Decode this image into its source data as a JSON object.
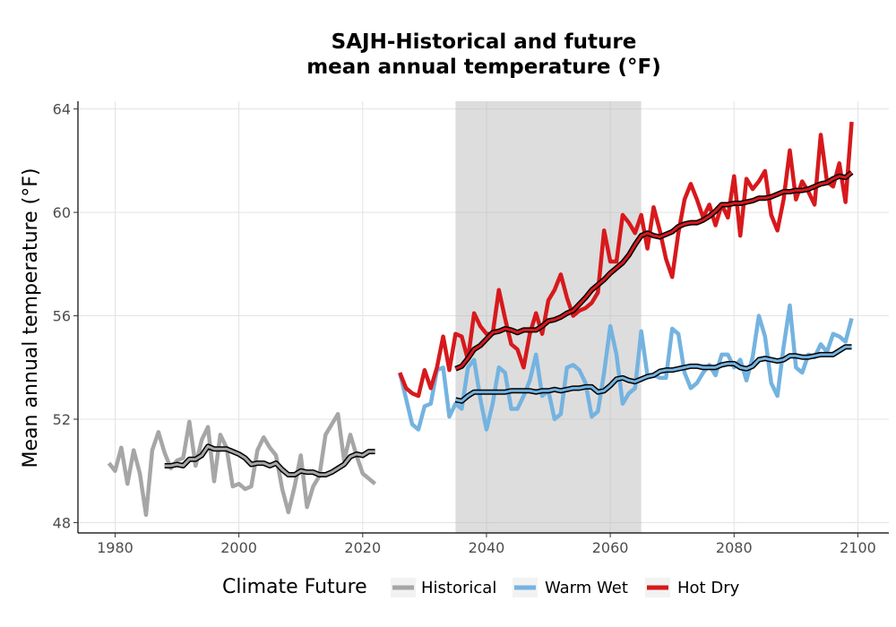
{
  "chart_data": {
    "type": "line",
    "title_line1": "SAJH-Historical and future",
    "title_line2": "mean annual temperature (°F)",
    "xlabel": "",
    "ylabel": "Mean annual temperature (°F)",
    "xlim": [
      1974,
      2105
    ],
    "ylim": [
      47.6,
      64.3
    ],
    "xticks": [
      1980,
      2000,
      2020,
      2040,
      2060,
      2080,
      2100
    ],
    "yticks": [
      48,
      52,
      56,
      60,
      64
    ],
    "grid": true,
    "shaded_period": [
      2035,
      2065
    ],
    "legend": {
      "title": "Climate Future",
      "position": "bottom",
      "entries": [
        "Historical",
        "Warm Wet",
        "Hot Dry"
      ]
    },
    "series": [
      {
        "name": "Historical",
        "color": "#a6a6a6",
        "x": [
          1979,
          1980,
          1981,
          1982,
          1983,
          1984,
          1985,
          1986,
          1987,
          1988,
          1989,
          1990,
          1991,
          1992,
          1993,
          1994,
          1995,
          1996,
          1997,
          1998,
          1999,
          2000,
          2001,
          2002,
          2003,
          2004,
          2005,
          2006,
          2007,
          2008,
          2009,
          2010,
          2011,
          2012,
          2013,
          2014,
          2015,
          2016,
          2017,
          2018,
          2019,
          2020,
          2021,
          2022
        ],
        "values": [
          50.3,
          50.0,
          50.9,
          49.5,
          50.8,
          49.9,
          48.3,
          50.8,
          51.5,
          50.7,
          50.1,
          50.4,
          50.5,
          51.9,
          50.2,
          51.2,
          51.7,
          49.6,
          51.4,
          50.9,
          49.4,
          49.5,
          49.3,
          49.4,
          50.8,
          51.3,
          50.9,
          50.6,
          49.3,
          48.4,
          49.4,
          50.6,
          48.6,
          49.4,
          49.8,
          51.4,
          51.8,
          52.2,
          50.4,
          51.4,
          50.6,
          49.9,
          49.7,
          49.5
        ],
        "smoothed_x": [
          1988,
          1989,
          1990,
          1991,
          1992,
          1993,
          1994,
          1995,
          1996,
          1997,
          1998,
          1999,
          2000,
          2001,
          2002,
          2003,
          2004,
          2005,
          2006,
          2007,
          2008,
          2009,
          2010,
          2011,
          2012,
          2013,
          2014,
          2015,
          2016,
          2017,
          2018,
          2019,
          2020,
          2021,
          2022
        ],
        "smoothed_values": [
          50.2,
          50.2,
          50.25,
          50.2,
          50.45,
          50.45,
          50.6,
          50.95,
          50.85,
          50.85,
          50.85,
          50.75,
          50.65,
          50.5,
          50.25,
          50.3,
          50.3,
          50.2,
          50.3,
          50.05,
          49.85,
          49.85,
          50.0,
          49.95,
          49.95,
          49.85,
          49.85,
          49.95,
          50.1,
          50.25,
          50.55,
          50.65,
          50.6,
          50.75,
          50.75
        ]
      },
      {
        "name": "Warm Wet",
        "color": "#74b3e0",
        "x": [
          2026,
          2027,
          2028,
          2029,
          2030,
          2031,
          2032,
          2033,
          2034,
          2035,
          2036,
          2037,
          2038,
          2039,
          2040,
          2041,
          2042,
          2043,
          2044,
          2045,
          2046,
          2047,
          2048,
          2049,
          2050,
          2051,
          2052,
          2053,
          2054,
          2055,
          2056,
          2057,
          2058,
          2059,
          2060,
          2061,
          2062,
          2063,
          2064,
          2065,
          2066,
          2067,
          2068,
          2069,
          2070,
          2071,
          2072,
          2073,
          2074,
          2075,
          2076,
          2077,
          2078,
          2079,
          2080,
          2081,
          2082,
          2083,
          2084,
          2085,
          2086,
          2087,
          2088,
          2089,
          2090,
          2091,
          2092,
          2093,
          2094,
          2095,
          2096,
          2097,
          2098,
          2099
        ],
        "values": [
          53.8,
          52.8,
          51.8,
          51.6,
          52.5,
          52.6,
          53.9,
          54.0,
          52.1,
          52.6,
          52.4,
          54.0,
          54.3,
          52.8,
          51.6,
          52.6,
          54.0,
          53.8,
          52.4,
          52.4,
          52.9,
          53.5,
          54.5,
          52.9,
          53.1,
          52.0,
          52.2,
          54.0,
          54.1,
          53.9,
          53.4,
          52.1,
          52.3,
          53.8,
          55.6,
          54.5,
          52.6,
          53.0,
          53.2,
          55.4,
          53.7,
          53.7,
          53.6,
          53.6,
          55.5,
          55.3,
          53.8,
          53.2,
          53.4,
          53.8,
          54.1,
          53.7,
          54.5,
          54.5,
          54.0,
          54.3,
          53.5,
          54.4,
          56.0,
          55.2,
          53.4,
          52.9,
          54.8,
          56.4,
          54.0,
          53.8,
          54.5,
          54.4,
          54.9,
          54.6,
          55.3,
          55.2,
          55.0,
          55.9
        ],
        "smoothed_x": [
          2035,
          2036,
          2037,
          2038,
          2039,
          2040,
          2041,
          2042,
          2043,
          2044,
          2045,
          2046,
          2047,
          2048,
          2049,
          2050,
          2051,
          2052,
          2053,
          2054,
          2055,
          2056,
          2057,
          2058,
          2059,
          2060,
          2061,
          2062,
          2063,
          2064,
          2065,
          2066,
          2067,
          2068,
          2069,
          2070,
          2071,
          2072,
          2073,
          2074,
          2075,
          2076,
          2077,
          2078,
          2079,
          2080,
          2081,
          2082,
          2083,
          2084,
          2085,
          2086,
          2087,
          2088,
          2089,
          2090,
          2091,
          2092,
          2093,
          2094,
          2095,
          2096,
          2097,
          2098,
          2099
        ],
        "smoothed_values": [
          52.75,
          52.7,
          52.9,
          53.05,
          53.05,
          53.05,
          53.05,
          53.05,
          53.05,
          53.1,
          53.1,
          53.1,
          53.1,
          53.05,
          53.1,
          53.1,
          53.15,
          53.1,
          53.15,
          53.2,
          53.2,
          53.25,
          53.25,
          53.05,
          53.1,
          53.3,
          53.55,
          53.6,
          53.5,
          53.45,
          53.55,
          53.65,
          53.7,
          53.85,
          53.9,
          53.9,
          53.95,
          54.0,
          54.05,
          54.05,
          54.0,
          54.0,
          54.0,
          54.1,
          54.15,
          54.15,
          54.0,
          53.95,
          54.05,
          54.3,
          54.35,
          54.3,
          54.25,
          54.3,
          54.45,
          54.45,
          54.4,
          54.4,
          54.45,
          54.5,
          54.5,
          54.5,
          54.65,
          54.8,
          54.8
        ],
        "smoothed_note": ""
      },
      {
        "name": "Hot Dry",
        "color": "#d7191c",
        "x": [
          2026,
          2027,
          2028,
          2029,
          2030,
          2031,
          2032,
          2033,
          2034,
          2035,
          2036,
          2037,
          2038,
          2039,
          2040,
          2041,
          2042,
          2043,
          2044,
          2045,
          2046,
          2047,
          2048,
          2049,
          2050,
          2051,
          2052,
          2053,
          2054,
          2055,
          2056,
          2057,
          2058,
          2059,
          2060,
          2061,
          2062,
          2063,
          2064,
          2065,
          2066,
          2067,
          2068,
          2069,
          2070,
          2071,
          2072,
          2073,
          2074,
          2075,
          2076,
          2077,
          2078,
          2079,
          2080,
          2081,
          2082,
          2083,
          2084,
          2085,
          2086,
          2087,
          2088,
          2089,
          2090,
          2091,
          2092,
          2093,
          2094,
          2095,
          2096,
          2097,
          2098,
          2099
        ],
        "values": [
          53.8,
          53.2,
          53.0,
          52.9,
          53.9,
          53.2,
          54.0,
          55.2,
          53.9,
          55.3,
          55.2,
          54.3,
          56.1,
          55.6,
          55.3,
          55.3,
          57.0,
          55.9,
          54.9,
          54.7,
          54.0,
          55.3,
          56.1,
          55.3,
          56.6,
          57.0,
          57.6,
          56.7,
          56.0,
          56.2,
          56.3,
          56.5,
          56.9,
          59.3,
          58.1,
          58.1,
          59.9,
          59.6,
          59.2,
          59.9,
          58.6,
          60.2,
          59.3,
          58.2,
          57.5,
          59.2,
          60.5,
          61.1,
          60.5,
          59.8,
          60.3,
          59.5,
          60.3,
          59.8,
          61.4,
          59.1,
          61.3,
          60.9,
          61.2,
          61.6,
          59.9,
          59.3,
          60.5,
          62.4,
          60.5,
          61.2,
          60.8,
          60.3,
          63.0,
          61.2,
          61.0,
          61.9,
          60.4,
          63.5
        ],
        "smoothed_x": [
          2035,
          2036,
          2037,
          2038,
          2039,
          2040,
          2041,
          2042,
          2043,
          2044,
          2045,
          2046,
          2047,
          2048,
          2049,
          2050,
          2051,
          2052,
          2053,
          2054,
          2055,
          2056,
          2057,
          2058,
          2059,
          2060,
          2061,
          2062,
          2063,
          2064,
          2065,
          2066,
          2067,
          2068,
          2069,
          2070,
          2071,
          2072,
          2073,
          2074,
          2075,
          2076,
          2077,
          2078,
          2079,
          2080,
          2081,
          2082,
          2083,
          2084,
          2085,
          2086,
          2087,
          2088,
          2089,
          2090,
          2091,
          2092,
          2093,
          2094,
          2095,
          2096,
          2097,
          2098,
          2099
        ],
        "smoothed_values": [
          53.95,
          54.05,
          54.35,
          54.7,
          54.85,
          55.1,
          55.35,
          55.4,
          55.5,
          55.45,
          55.35,
          55.45,
          55.45,
          55.45,
          55.6,
          55.8,
          55.85,
          55.95,
          56.1,
          56.2,
          56.45,
          56.7,
          57.0,
          57.2,
          57.4,
          57.65,
          57.85,
          58.05,
          58.35,
          58.75,
          59.1,
          59.2,
          59.1,
          59.05,
          59.15,
          59.25,
          59.45,
          59.55,
          59.6,
          59.6,
          59.7,
          59.85,
          60.05,
          60.3,
          60.3,
          60.35,
          60.35,
          60.4,
          60.45,
          60.55,
          60.55,
          60.6,
          60.7,
          60.8,
          60.8,
          60.85,
          60.85,
          60.9,
          61.0,
          61.1,
          61.15,
          61.3,
          61.4,
          61.35,
          61.55
        ],
        "smoothed_note": ""
      }
    ]
  }
}
